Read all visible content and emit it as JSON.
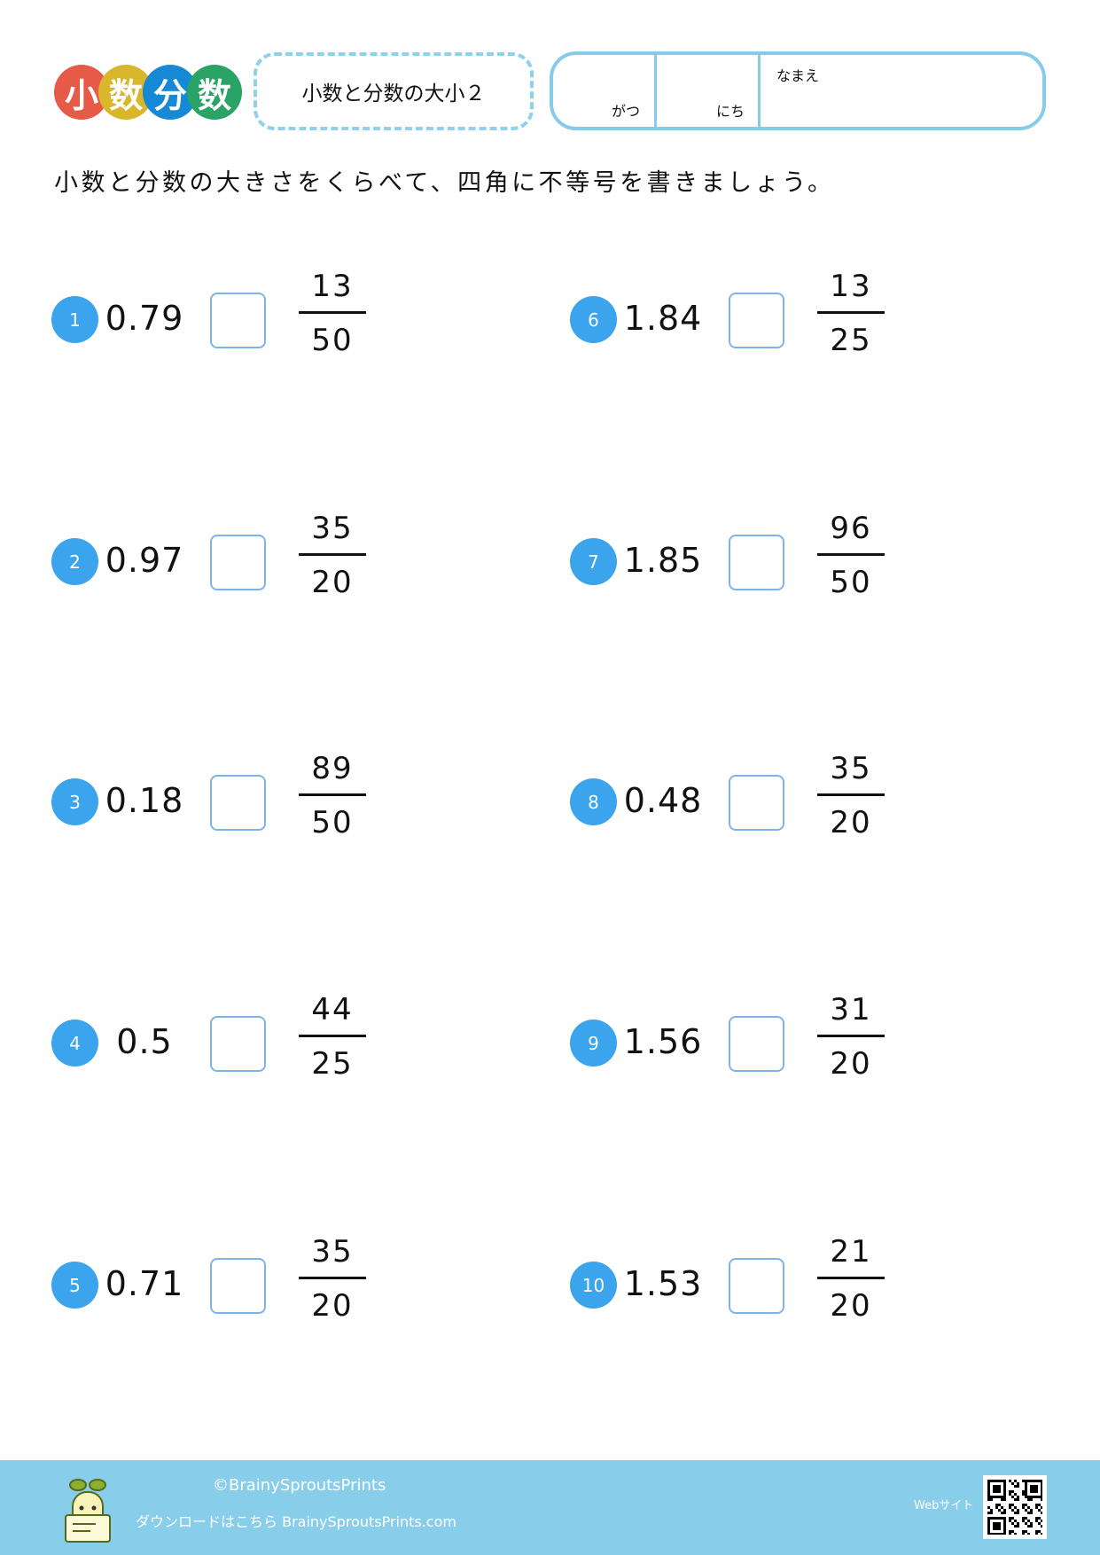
{
  "header": {
    "logo_chars": [
      "小",
      "数",
      "分",
      "数"
    ],
    "logo_colors": [
      "#e65b47",
      "#d9b72a",
      "#1689d6",
      "#2aa366"
    ],
    "title": "小数と分数の大小２",
    "month_label": "がつ",
    "day_label": "にち",
    "name_label": "なまえ"
  },
  "instruction": "小数と分数の大きさをくらべて、四角に不等号を書きましょう。",
  "problems": [
    {
      "n": "1",
      "decimal": "0.79",
      "num": "13",
      "den": "50"
    },
    {
      "n": "2",
      "decimal": "0.97",
      "num": "35",
      "den": "20"
    },
    {
      "n": "3",
      "decimal": "0.18",
      "num": "89",
      "den": "50"
    },
    {
      "n": "4",
      "decimal": "0.5",
      "num": "44",
      "den": "25"
    },
    {
      "n": "5",
      "decimal": "0.71",
      "num": "35",
      "den": "20"
    },
    {
      "n": "6",
      "decimal": "1.84",
      "num": "13",
      "den": "25"
    },
    {
      "n": "7",
      "decimal": "1.85",
      "num": "96",
      "den": "50"
    },
    {
      "n": "8",
      "decimal": "0.48",
      "num": "35",
      "den": "20"
    },
    {
      "n": "9",
      "decimal": "1.56",
      "num": "31",
      "den": "20"
    },
    {
      "n": "10",
      "decimal": "1.53",
      "num": "21",
      "den": "20"
    }
  ],
  "footer": {
    "copyright": "©BrainySproutsPrints",
    "download": "ダウンロードはこちら BrainySproutsPrints.com",
    "website_label": "Webサイト",
    "color": "#88cdea"
  }
}
